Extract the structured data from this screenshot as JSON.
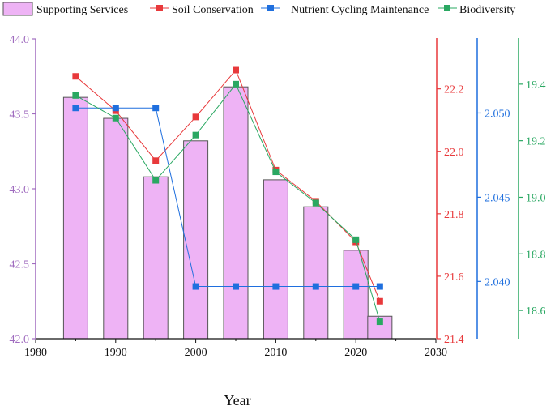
{
  "chart_data": {
    "type": "bar+line",
    "xlabel": "Year",
    "x_ticks": [
      1980,
      1990,
      2000,
      2010,
      2020,
      2030
    ],
    "xlim": [
      1980,
      2030
    ],
    "colors": {
      "bar_fill": "#eeb3f5",
      "bar_stroke": "#555555",
      "soil": "#e8393b",
      "nutrient": "#1f6fde",
      "bio": "#2aa862",
      "left_axis": "#a06cbf"
    },
    "bars": {
      "name": "Supporting Services",
      "axis": "left",
      "x": [
        1985,
        1990,
        1995,
        2000,
        2005,
        2010,
        2015,
        2020,
        2023
      ],
      "values": [
        43.61,
        43.47,
        43.08,
        43.32,
        43.68,
        43.06,
        42.88,
        42.59,
        42.15
      ]
    },
    "series": [
      {
        "name": "Soil Conservation",
        "axis": "right1",
        "x": [
          1985,
          1990,
          1995,
          2000,
          2005,
          2010,
          2015,
          2020,
          2023
        ],
        "values": [
          22.24,
          22.13,
          21.97,
          22.11,
          22.26,
          21.94,
          21.84,
          21.71,
          21.52
        ]
      },
      {
        "name": "Nutrient Cycling Maintenance",
        "axis": "right2",
        "x": [
          1985,
          1990,
          1995,
          2000,
          2005,
          2010,
          2015,
          2020,
          2023
        ],
        "values": [
          2.0503,
          2.0503,
          2.0503,
          2.0397,
          2.0397,
          2.0397,
          2.0397,
          2.0397,
          2.0397
        ]
      },
      {
        "name": "Biodiversity",
        "axis": "right3",
        "x": [
          1985,
          1990,
          1995,
          2000,
          2005,
          2010,
          2015,
          2020,
          2023
        ],
        "values": [
          19.36,
          19.28,
          19.06,
          19.22,
          19.4,
          19.09,
          18.98,
          18.85,
          18.56
        ]
      }
    ],
    "axes": {
      "left": {
        "ylim": [
          42.0,
          44.0
        ],
        "ticks": [
          "42.0",
          "42.5",
          "43.0",
          "43.5",
          "44.0"
        ]
      },
      "right1": {
        "ylim": [
          21.4,
          22.36
        ],
        "ticks": [
          "21.4",
          "21.6",
          "21.8",
          "22.0",
          "22.2"
        ]
      },
      "right2": {
        "ylim": [
          2.0366,
          2.0544
        ],
        "ticks": [
          "2.040",
          "2.045",
          "2.050"
        ]
      },
      "right3": {
        "ylim": [
          18.5,
          19.56
        ],
        "ticks": [
          "18.6",
          "18.8",
          "19.0",
          "19.2",
          "19.4"
        ]
      }
    },
    "legend": [
      "Supporting Services",
      "Soil Conservation",
      "Nutrient Cycling Maintenance",
      "Biodiversity"
    ]
  }
}
